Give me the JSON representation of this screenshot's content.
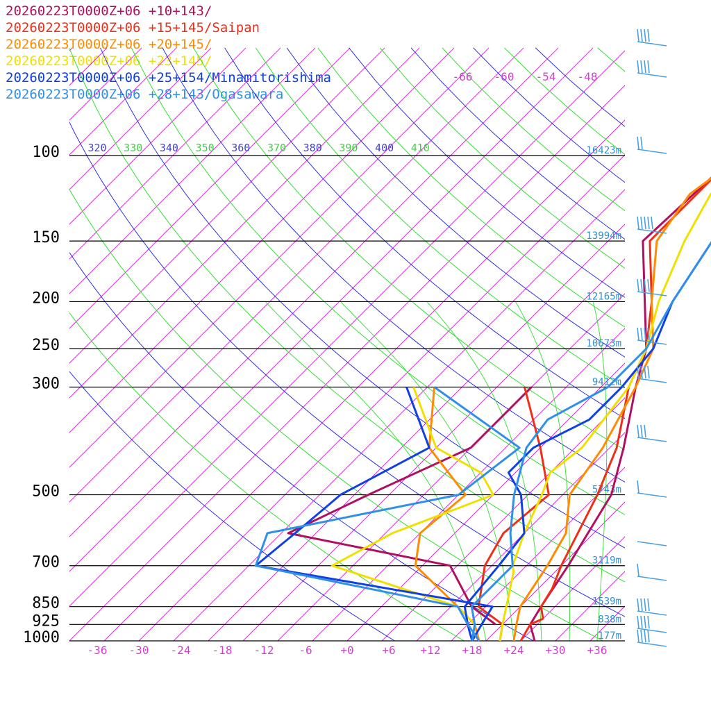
{
  "chart_data": {
    "type": "line",
    "title": "",
    "pressure_axis": {
      "labels": [
        "100",
        "150",
        "200",
        "250",
        "300",
        "500",
        "700",
        "850",
        "925",
        "1000"
      ],
      "values": [
        100,
        150,
        200,
        250,
        300,
        500,
        700,
        850,
        925,
        1000
      ],
      "ylim": [
        1000,
        80
      ],
      "scale": "log"
    },
    "temperature_axis": {
      "labels": [
        "-36",
        "-30",
        "-24",
        "-18",
        "-12",
        "-6",
        "+0",
        "+6",
        "+12",
        "+18",
        "+24",
        "+30",
        "+36"
      ],
      "values": [
        -36,
        -30,
        -24,
        -18,
        -12,
        -6,
        0,
        6,
        12,
        18,
        24,
        30,
        36
      ],
      "xlim": [
        -40,
        40
      ],
      "skew": true
    },
    "height_labels": [
      {
        "p": 100,
        "label": "16423m"
      },
      {
        "p": 150,
        "label": "13994m"
      },
      {
        "p": 200,
        "label": "12165m"
      },
      {
        "p": 250,
        "label": "10673m"
      },
      {
        "p": 300,
        "label": "9412m"
      },
      {
        "p": 500,
        "label": "5743m"
      },
      {
        "p": 700,
        "label": "3119m"
      },
      {
        "p": 850,
        "label": "1539m"
      },
      {
        "p": 925,
        "label": "838m"
      },
      {
        "p": 1000,
        "label": "177m"
      }
    ],
    "theta_labels": [
      "320",
      "330",
      "340",
      "350",
      "360",
      "370",
      "380",
      "390",
      "400",
      "410"
    ],
    "isotherm_labels_top": [
      "-66",
      "-60",
      "-54",
      "-48"
    ],
    "series": [
      {
        "name": "20260223T0000Z+06 +10+143/",
        "color": "#b01060",
        "temp": [
          [
            1000,
            27
          ],
          [
            925,
            24
          ],
          [
            850,
            23
          ],
          [
            700,
            21
          ],
          [
            500,
            17
          ],
          [
            400,
            12
          ],
          [
            300,
            5
          ],
          [
            250,
            1
          ],
          [
            200,
            -6
          ],
          [
            150,
            -15
          ],
          [
            100,
            -14
          ],
          [
            85,
            -9
          ],
          [
            80,
            -6
          ]
        ],
        "dewp": [
          [
            925,
            19
          ],
          [
            850,
            13
          ],
          [
            700,
            4
          ],
          [
            600,
            -24
          ],
          [
            500,
            -18
          ],
          [
            400,
            -10
          ],
          [
            300,
            -10
          ]
        ]
      },
      {
        "name": "20260223T0000Z+06 +15+145/Saipan",
        "color": "#ee3018",
        "temp": [
          [
            1000,
            25
          ],
          [
            925,
            24
          ],
          [
            900,
            25
          ],
          [
            850,
            23
          ],
          [
            780,
            22
          ],
          [
            700,
            20
          ],
          [
            500,
            15
          ],
          [
            400,
            11
          ],
          [
            300,
            4
          ],
          [
            250,
            1
          ],
          [
            200,
            -5
          ],
          [
            150,
            -14
          ],
          [
            100,
            -14
          ],
          [
            90,
            -13
          ],
          [
            80,
            -5
          ]
        ],
        "dewp": [
          [
            1000,
            22
          ],
          [
            925,
            20
          ],
          [
            850,
            14
          ],
          [
            700,
            9
          ],
          [
            600,
            7
          ],
          [
            500,
            8
          ],
          [
            400,
            0
          ],
          [
            300,
            -11
          ]
        ]
      },
      {
        "name": "20260223T0000Z+06 +20+145/",
        "color": "#ff8c00",
        "temp": [
          [
            1000,
            24
          ],
          [
            925,
            22
          ],
          [
            850,
            20
          ],
          [
            700,
            18
          ],
          [
            600,
            16
          ],
          [
            500,
            11
          ],
          [
            400,
            9
          ],
          [
            300,
            5
          ],
          [
            250,
            2
          ],
          [
            200,
            -5
          ],
          [
            150,
            -13
          ],
          [
            120,
            -15
          ],
          [
            100,
            -13
          ],
          [
            80,
            -6
          ]
        ],
        "dewp": [
          [
            1000,
            19
          ],
          [
            925,
            16
          ],
          [
            850,
            11
          ],
          [
            700,
            -1
          ],
          [
            600,
            -5
          ],
          [
            500,
            -4
          ],
          [
            400,
            -16
          ],
          [
            300,
            -24
          ]
        ]
      },
      {
        "name": "20260223T0000Z+06 +23+145/",
        "color": "#f0e000",
        "temp": [
          [
            1000,
            22
          ],
          [
            925,
            20
          ],
          [
            850,
            18
          ],
          [
            720,
            14
          ],
          [
            700,
            13
          ],
          [
            600,
            10
          ],
          [
            500,
            7
          ],
          [
            450,
            5
          ],
          [
            400,
            6
          ],
          [
            300,
            4
          ],
          [
            250,
            1
          ],
          [
            200,
            -4
          ],
          [
            150,
            -9
          ],
          [
            120,
            -12
          ],
          [
            100,
            -9
          ],
          [
            80,
            -6
          ]
        ],
        "dewp": [
          [
            1000,
            18
          ],
          [
            925,
            16
          ],
          [
            850,
            11
          ],
          [
            700,
            -13
          ],
          [
            600,
            -9
          ],
          [
            500,
            0
          ],
          [
            450,
            -5
          ],
          [
            400,
            -15
          ],
          [
            300,
            -27
          ]
        ]
      },
      {
        "name": "20260223T0000Z+06 +25+154/Minamitorishima",
        "color": "#1040e0",
        "temp": [
          [
            1000,
            18
          ],
          [
            950,
            16
          ],
          [
            925,
            15
          ],
          [
            850,
            12
          ],
          [
            700,
            11
          ],
          [
            600,
            10
          ],
          [
            500,
            4
          ],
          [
            450,
            -1
          ],
          [
            400,
            -1
          ],
          [
            350,
            3
          ],
          [
            300,
            3
          ],
          [
            250,
            2
          ],
          [
            200,
            -2
          ],
          [
            150,
            -5
          ],
          [
            100,
            -4
          ],
          [
            80,
            3
          ]
        ],
        "dewp": [
          [
            1000,
            18
          ],
          [
            925,
            17
          ],
          [
            850,
            16
          ],
          [
            700,
            -24
          ],
          [
            600,
            -23
          ],
          [
            500,
            -22
          ],
          [
            400,
            -16
          ],
          [
            300,
            -28
          ]
        ]
      },
      {
        "name": "20260223T0000Z+06 +28+143/Ogasawara",
        "color": "#3090e8",
        "temp": [
          [
            1000,
            18
          ],
          [
            925,
            16
          ],
          [
            850,
            13
          ],
          [
            700,
            13
          ],
          [
            600,
            8
          ],
          [
            500,
            3
          ],
          [
            400,
            -2
          ],
          [
            350,
            -3
          ],
          [
            300,
            1
          ],
          [
            250,
            1
          ],
          [
            200,
            -2
          ],
          [
            150,
            -5
          ],
          [
            120,
            -6
          ],
          [
            100,
            -3
          ],
          [
            85,
            -3
          ],
          [
            80,
            5
          ]
        ],
        "dewp": [
          [
            1000,
            19
          ],
          [
            925,
            15
          ],
          [
            850,
            11
          ],
          [
            700,
            -24
          ],
          [
            600,
            -27
          ],
          [
            500,
            -5
          ],
          [
            400,
            -3
          ],
          [
            300,
            -24
          ]
        ]
      }
    ],
    "grid": true
  }
}
